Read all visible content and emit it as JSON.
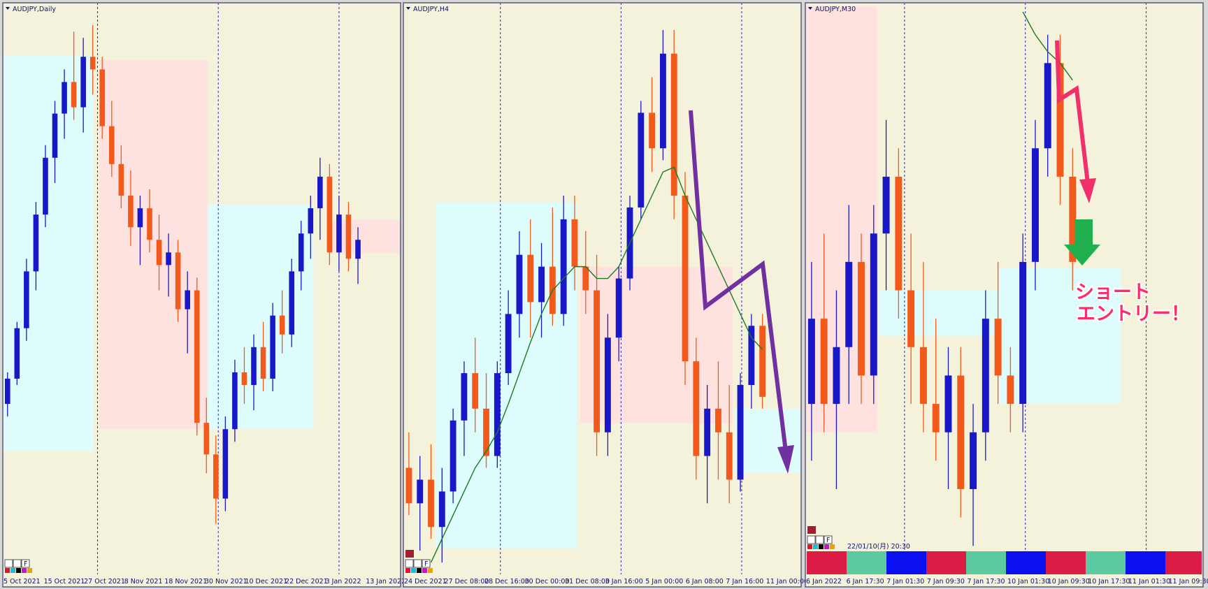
{
  "chart_data": [
    {
      "type": "candlestick",
      "title": "AUDJPY,Daily",
      "toolbar_label": "F",
      "ylim": [
        78,
        87
      ],
      "xlim": [
        0,
        42
      ],
      "bull_color": "#1818c8",
      "bear_color": "#f25a1c",
      "xticks": [
        {
          "value": 0,
          "label": "5 Oct 2021"
        },
        {
          "value": 4.25,
          "label": "15 Oct 2021"
        },
        {
          "value": 8.5,
          "label": "27 Oct 2021"
        },
        {
          "value": 12.75,
          "label": "8 Nov 2021"
        },
        {
          "value": 17,
          "label": "18 Nov 2021"
        },
        {
          "value": 21.25,
          "label": "30 Nov 2021"
        },
        {
          "value": 25.5,
          "label": "10 Dec 2021"
        },
        {
          "value": 29.75,
          "label": "22 Dec 2021"
        },
        {
          "value": 34,
          "label": "3 Jan 2022"
        },
        {
          "value": 38.25,
          "label": "13 Jan 2022"
        }
      ],
      "zones": [
        {
          "x": [
            0,
            9.6
          ],
          "y": [
            79.95,
            86.22
          ],
          "color": "#dffcfc"
        },
        {
          "x": [
            10.2,
            21.6
          ],
          "y": [
            80.3,
            86.15
          ],
          "color": "#fde2e0"
        },
        {
          "x": [
            21.6,
            32.8
          ],
          "y": [
            80.3,
            83.86
          ],
          "color": "#dffcfc"
        },
        {
          "x": [
            34.8,
            42
          ],
          "y": [
            83.09,
            83.62
          ],
          "color": "#fde2e0"
        }
      ],
      "candles": [
        [
          80.7,
          81.2,
          80.5,
          81.1
        ],
        [
          81.1,
          82.0,
          81.0,
          81.9
        ],
        [
          81.9,
          83.0,
          81.7,
          82.8
        ],
        [
          82.8,
          83.9,
          82.5,
          83.7
        ],
        [
          83.7,
          84.8,
          83.5,
          84.6
        ],
        [
          84.6,
          85.5,
          84.2,
          85.3
        ],
        [
          85.3,
          86.0,
          84.9,
          85.8
        ],
        [
          85.8,
          86.6,
          85.2,
          85.4
        ],
        [
          85.4,
          86.5,
          85.0,
          86.2
        ],
        [
          86.2,
          86.7,
          85.6,
          86.0
        ],
        [
          86.0,
          86.2,
          84.9,
          85.1
        ],
        [
          85.1,
          85.5,
          84.3,
          84.5
        ],
        [
          84.5,
          84.8,
          83.8,
          84.0
        ],
        [
          84.0,
          84.4,
          83.2,
          83.5
        ],
        [
          83.5,
          84.0,
          82.9,
          83.8
        ],
        [
          83.8,
          84.1,
          83.1,
          83.3
        ],
        [
          83.3,
          83.7,
          82.5,
          82.9
        ],
        [
          82.9,
          83.4,
          82.4,
          83.1
        ],
        [
          83.1,
          83.3,
          82.0,
          82.2
        ],
        [
          82.2,
          82.8,
          81.5,
          82.5
        ],
        [
          82.5,
          82.7,
          80.2,
          80.4
        ],
        [
          80.4,
          80.8,
          79.6,
          79.9
        ],
        [
          79.9,
          80.2,
          78.8,
          79.2
        ],
        [
          79.2,
          80.5,
          79.0,
          80.3
        ],
        [
          80.3,
          81.4,
          80.1,
          81.2
        ],
        [
          81.2,
          81.6,
          80.7,
          81.0
        ],
        [
          81.0,
          81.8,
          80.6,
          81.6
        ],
        [
          81.6,
          82.0,
          80.9,
          81.1
        ],
        [
          81.1,
          82.3,
          80.9,
          82.1
        ],
        [
          82.1,
          82.5,
          81.5,
          81.8
        ],
        [
          81.8,
          83.0,
          81.6,
          82.8
        ],
        [
          82.8,
          83.6,
          82.5,
          83.4
        ],
        [
          83.4,
          84.0,
          83.0,
          83.8
        ],
        [
          83.8,
          84.6,
          83.3,
          84.3
        ],
        [
          84.3,
          84.5,
          82.9,
          83.1
        ],
        [
          83.1,
          84.0,
          82.8,
          83.7
        ],
        [
          83.7,
          83.9,
          82.8,
          83.0
        ],
        [
          83.0,
          83.5,
          82.6,
          83.3
        ]
      ]
    },
    {
      "type": "candlestick",
      "title": "AUDJPY,H4",
      "toolbar_label": "F",
      "ylim": [
        82,
        84.4
      ],
      "xlim": [
        0,
        36
      ],
      "bull_color": "#1818c8",
      "bear_color": "#f25a1c",
      "ma_color": "#1c7a1c",
      "xticks": [
        {
          "value": 0,
          "label": "24 Dec 2021"
        },
        {
          "value": 3.64,
          "label": "27 Dec 08:00"
        },
        {
          "value": 7.28,
          "label": "28 Dec 16:00"
        },
        {
          "value": 10.92,
          "label": "30 Dec 00:00"
        },
        {
          "value": 14.56,
          "label": "31 Dec 08:00"
        },
        {
          "value": 18.2,
          "label": "3 Jan 16:00"
        },
        {
          "value": 21.84,
          "label": "5 Jan 00:00"
        },
        {
          "value": 25.48,
          "label": "6 Jan 08:00"
        },
        {
          "value": 29.12,
          "label": "7 Jan 16:00"
        },
        {
          "value": 32.76,
          "label": "11 Jan 00:00"
        }
      ],
      "zones": [
        {
          "x": [
            2.9,
            15.7
          ],
          "y": [
            82.11,
            83.57
          ],
          "color": "#dffcfc"
        },
        {
          "x": [
            16,
            29.8
          ],
          "y": [
            82.64,
            83.3
          ],
          "color": "#fde2e0"
        },
        {
          "x": [
            30,
            36
          ],
          "y": [
            82.43,
            82.7
          ],
          "color": "#dffcfc"
        }
      ],
      "candles": [
        [
          82.45,
          82.6,
          82.25,
          82.3
        ],
        [
          82.3,
          82.5,
          82.1,
          82.4
        ],
        [
          82.4,
          82.55,
          82.15,
          82.2
        ],
        [
          82.2,
          82.45,
          82.05,
          82.35
        ],
        [
          82.35,
          82.7,
          82.3,
          82.65
        ],
        [
          82.65,
          82.9,
          82.5,
          82.85
        ],
        [
          82.85,
          83.0,
          82.6,
          82.7
        ],
        [
          82.7,
          82.85,
          82.45,
          82.5
        ],
        [
          82.5,
          82.9,
          82.45,
          82.85
        ],
        [
          82.85,
          83.2,
          82.8,
          83.1
        ],
        [
          83.1,
          83.45,
          83.0,
          83.35
        ],
        [
          83.35,
          83.5,
          83.0,
          83.15
        ],
        [
          83.15,
          83.4,
          83.0,
          83.3
        ],
        [
          83.3,
          83.55,
          83.05,
          83.1
        ],
        [
          83.1,
          83.6,
          83.05,
          83.5
        ],
        [
          83.5,
          83.6,
          83.2,
          83.3
        ],
        [
          83.3,
          83.45,
          83.1,
          83.2
        ],
        [
          83.2,
          83.35,
          82.5,
          82.6
        ],
        [
          82.6,
          83.1,
          82.5,
          83.0
        ],
        [
          83.0,
          83.3,
          82.9,
          83.25
        ],
        [
          83.25,
          83.6,
          83.2,
          83.55
        ],
        [
          83.55,
          84.0,
          83.5,
          83.95
        ],
        [
          83.95,
          84.1,
          83.7,
          83.8
        ],
        [
          83.8,
          84.3,
          83.75,
          84.2
        ],
        [
          84.2,
          84.3,
          83.5,
          83.6
        ],
        [
          83.6,
          83.7,
          82.8,
          82.9
        ],
        [
          82.9,
          83.0,
          82.4,
          82.5
        ],
        [
          82.5,
          82.8,
          82.3,
          82.7
        ],
        [
          82.7,
          82.9,
          82.4,
          82.6
        ],
        [
          82.6,
          82.8,
          82.3,
          82.4
        ],
        [
          82.4,
          82.85,
          82.35,
          82.8
        ],
        [
          82.8,
          83.1,
          82.7,
          83.05
        ],
        [
          83.05,
          83.1,
          82.7,
          82.75
        ]
      ],
      "ma": [
        null,
        null,
        82.05,
        82.15,
        82.25,
        82.35,
        82.45,
        82.52,
        82.6,
        82.72,
        82.85,
        82.98,
        83.1,
        83.2,
        83.25,
        83.3,
        83.3,
        83.25,
        83.25,
        83.3,
        83.4,
        83.5,
        83.6,
        83.7,
        83.72,
        83.6,
        83.5,
        83.4,
        83.3,
        83.2,
        83.1,
        83.0,
        82.95
      ]
    },
    {
      "type": "candlestick",
      "title": "AUDJPY,M30",
      "toolbar_label": "F",
      "timestamp": "22/01/10(月) 20:30",
      "annotation": [
        "ショート",
        "エントリー！"
      ],
      "ylim": [
        82.3,
        83.3
      ],
      "xlim": [
        0,
        32
      ],
      "bull_color": "#1818c8",
      "bear_color": "#f25a1c",
      "ma_color": "#1c7a1c",
      "xticks": [
        {
          "value": 0,
          "label": "6 Jan 2022"
        },
        {
          "value": 3.24,
          "label": "6 Jan 17:30"
        },
        {
          "value": 6.48,
          "label": "7 Jan 01:30"
        },
        {
          "value": 9.72,
          "label": "7 Jan 09:30"
        },
        {
          "value": 12.96,
          "label": "7 Jan 17:30"
        },
        {
          "value": 16.2,
          "label": "10 Jan 01:30"
        },
        {
          "value": 19.44,
          "label": "10 Jan 09:30"
        },
        {
          "value": 22.68,
          "label": "10 Jan 17:30"
        },
        {
          "value": 25.92,
          "label": "11 Jan 01:30"
        },
        {
          "value": 29.16,
          "label": "11 Jan 09:30"
        }
      ],
      "zones": [
        {
          "x": [
            0,
            5.8
          ],
          "y": [
            82.55,
            83.3
          ],
          "color": "#fde2e0"
        },
        {
          "x": [
            5.9,
            15.6
          ],
          "y": [
            82.72,
            82.8
          ],
          "color": "#dffcfc"
        },
        {
          "x": [
            15.6,
            25.4
          ],
          "y": [
            82.6,
            82.84
          ],
          "color": "#dffcfc"
        }
      ],
      "candles": [
        [
          82.6,
          82.85,
          82.5,
          82.75
        ],
        [
          82.75,
          82.9,
          82.55,
          82.6
        ],
        [
          82.6,
          82.8,
          82.45,
          82.7
        ],
        [
          82.7,
          82.95,
          82.6,
          82.85
        ],
        [
          82.85,
          82.9,
          82.6,
          82.65
        ],
        [
          82.65,
          82.95,
          82.6,
          82.9
        ],
        [
          82.9,
          83.1,
          82.8,
          83.0
        ],
        [
          83.0,
          83.05,
          82.75,
          82.8
        ],
        [
          82.8,
          82.9,
          82.6,
          82.7
        ],
        [
          82.7,
          82.85,
          82.55,
          82.6
        ],
        [
          82.6,
          82.75,
          82.5,
          82.55
        ],
        [
          82.55,
          82.7,
          82.45,
          82.65
        ],
        [
          82.65,
          82.7,
          82.4,
          82.45
        ],
        [
          82.45,
          82.6,
          82.35,
          82.55
        ],
        [
          82.55,
          82.8,
          82.5,
          82.75
        ],
        [
          82.75,
          82.85,
          82.6,
          82.65
        ],
        [
          82.65,
          82.7,
          82.55,
          82.6
        ],
        [
          82.6,
          82.9,
          82.55,
          82.85
        ],
        [
          82.85,
          83.1,
          82.8,
          83.05
        ],
        [
          83.05,
          83.25,
          83.0,
          83.2
        ],
        [
          83.2,
          83.25,
          82.95,
          83.0
        ],
        [
          83.0,
          83.05,
          82.8,
          82.85
        ]
      ],
      "ma": [
        null,
        null,
        null,
        null,
        null,
        null,
        null,
        null,
        null,
        null,
        null,
        null,
        null,
        null,
        null,
        null,
        null,
        83.29,
        83.25,
        83.22,
        83.2,
        83.17
      ]
    }
  ]
}
